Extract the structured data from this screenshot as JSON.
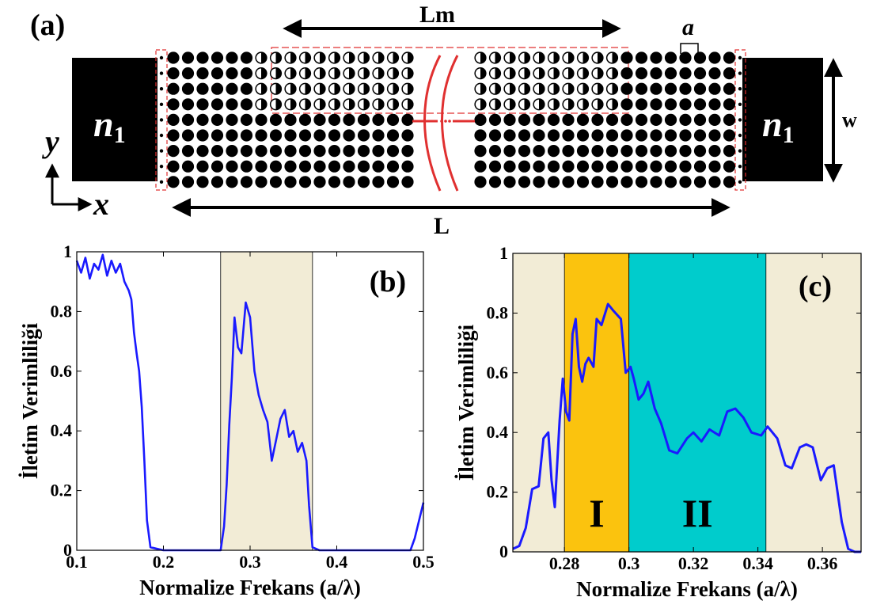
{
  "panel_a": {
    "label": "(a)",
    "dimension_labels": {
      "Lm": "Lm",
      "a": "a",
      "w": "w",
      "L": "L"
    },
    "block_label_base": "n",
    "block_label_sub": "1",
    "axis_y": "y",
    "axis_x": "x",
    "rows": 9,
    "colors": {
      "rod": "#000000",
      "marker": "#e03030",
      "defect_half": "#ffffff"
    }
  },
  "chart_data": [
    {
      "type": "line",
      "panel_label": "(b)",
      "xlabel": "Normalize Frekans (a/λ)",
      "ylabel": "İletim Verimliliği",
      "xlim": [
        0.1,
        0.5
      ],
      "ylim": [
        0,
        1
      ],
      "xticks": [
        "0.1",
        "0.2",
        "0.3",
        "0.4",
        "0.5"
      ],
      "yticks": [
        "0",
        "0.2",
        "0.4",
        "0.6",
        "0.8",
        "1"
      ],
      "shaded_band": {
        "x0": 0.266,
        "x1": 0.372,
        "color": "#f2ecd6"
      },
      "series": [
        {
          "color": "#1a1aff",
          "x": [
            0.1,
            0.105,
            0.11,
            0.115,
            0.12,
            0.125,
            0.13,
            0.135,
            0.14,
            0.145,
            0.15,
            0.155,
            0.16,
            0.163,
            0.166,
            0.169,
            0.172,
            0.175,
            0.178,
            0.181,
            0.185,
            0.2,
            0.22,
            0.24,
            0.266,
            0.27,
            0.273,
            0.276,
            0.279,
            0.282,
            0.286,
            0.29,
            0.295,
            0.3,
            0.305,
            0.31,
            0.315,
            0.32,
            0.325,
            0.33,
            0.335,
            0.34,
            0.345,
            0.35,
            0.355,
            0.36,
            0.365,
            0.368,
            0.372,
            0.38,
            0.42,
            0.46,
            0.485,
            0.49,
            0.495,
            0.5
          ],
          "y": [
            0.97,
            0.93,
            0.98,
            0.91,
            0.96,
            0.94,
            0.99,
            0.92,
            0.97,
            0.93,
            0.96,
            0.9,
            0.87,
            0.84,
            0.73,
            0.66,
            0.6,
            0.48,
            0.3,
            0.1,
            0.01,
            0.0,
            0.0,
            0.0,
            0.0,
            0.08,
            0.22,
            0.42,
            0.58,
            0.78,
            0.68,
            0.66,
            0.83,
            0.78,
            0.6,
            0.52,
            0.47,
            0.43,
            0.3,
            0.37,
            0.44,
            0.47,
            0.38,
            0.4,
            0.33,
            0.36,
            0.3,
            0.15,
            0.01,
            0.0,
            0.0,
            0.0,
            0.0,
            0.04,
            0.1,
            0.16
          ]
        }
      ]
    },
    {
      "type": "line",
      "panel_label": "(c)",
      "xlabel": "Normalize Frekans (a/λ)",
      "ylabel": "İletim Verimliliği",
      "xlim": [
        0.264,
        0.372
      ],
      "ylim": [
        0,
        1
      ],
      "xticks": [
        "0.28",
        "0.3",
        "0.32",
        "0.34",
        "0.36"
      ],
      "yticks": [
        "0",
        "0.2",
        "0.4",
        "0.6",
        "0.8",
        "1"
      ],
      "background_color": "#f2ecd6",
      "regions": [
        {
          "label": "I",
          "x0": 0.28,
          "x1": 0.3,
          "color": "#fbc30e"
        },
        {
          "label": "II",
          "x0": 0.3,
          "x1": 0.3425,
          "color": "#00cccc"
        }
      ],
      "series": [
        {
          "color": "#1a1aff",
          "x": [
            0.264,
            0.266,
            0.268,
            0.27,
            0.272,
            0.2735,
            0.275,
            0.276,
            0.277,
            0.2785,
            0.2795,
            0.2805,
            0.2815,
            0.2825,
            0.2835,
            0.2845,
            0.2855,
            0.2865,
            0.2875,
            0.289,
            0.29,
            0.2915,
            0.2935,
            0.295,
            0.2975,
            0.299,
            0.3005,
            0.3015,
            0.303,
            0.3045,
            0.306,
            0.308,
            0.31,
            0.3125,
            0.315,
            0.318,
            0.32,
            0.3225,
            0.325,
            0.328,
            0.3305,
            0.333,
            0.3355,
            0.338,
            0.341,
            0.343,
            0.346,
            0.3485,
            0.3505,
            0.353,
            0.355,
            0.357,
            0.3595,
            0.3615,
            0.3635,
            0.366,
            0.368,
            0.37,
            0.372
          ],
          "y": [
            0.01,
            0.02,
            0.08,
            0.21,
            0.22,
            0.38,
            0.4,
            0.24,
            0.15,
            0.44,
            0.58,
            0.47,
            0.44,
            0.73,
            0.78,
            0.62,
            0.57,
            0.63,
            0.65,
            0.62,
            0.78,
            0.76,
            0.83,
            0.81,
            0.78,
            0.6,
            0.62,
            0.58,
            0.51,
            0.53,
            0.57,
            0.48,
            0.43,
            0.34,
            0.33,
            0.38,
            0.4,
            0.37,
            0.41,
            0.39,
            0.47,
            0.48,
            0.45,
            0.4,
            0.39,
            0.42,
            0.38,
            0.29,
            0.28,
            0.35,
            0.36,
            0.35,
            0.24,
            0.28,
            0.29,
            0.1,
            0.01,
            0.0,
            0.0
          ]
        }
      ]
    }
  ]
}
